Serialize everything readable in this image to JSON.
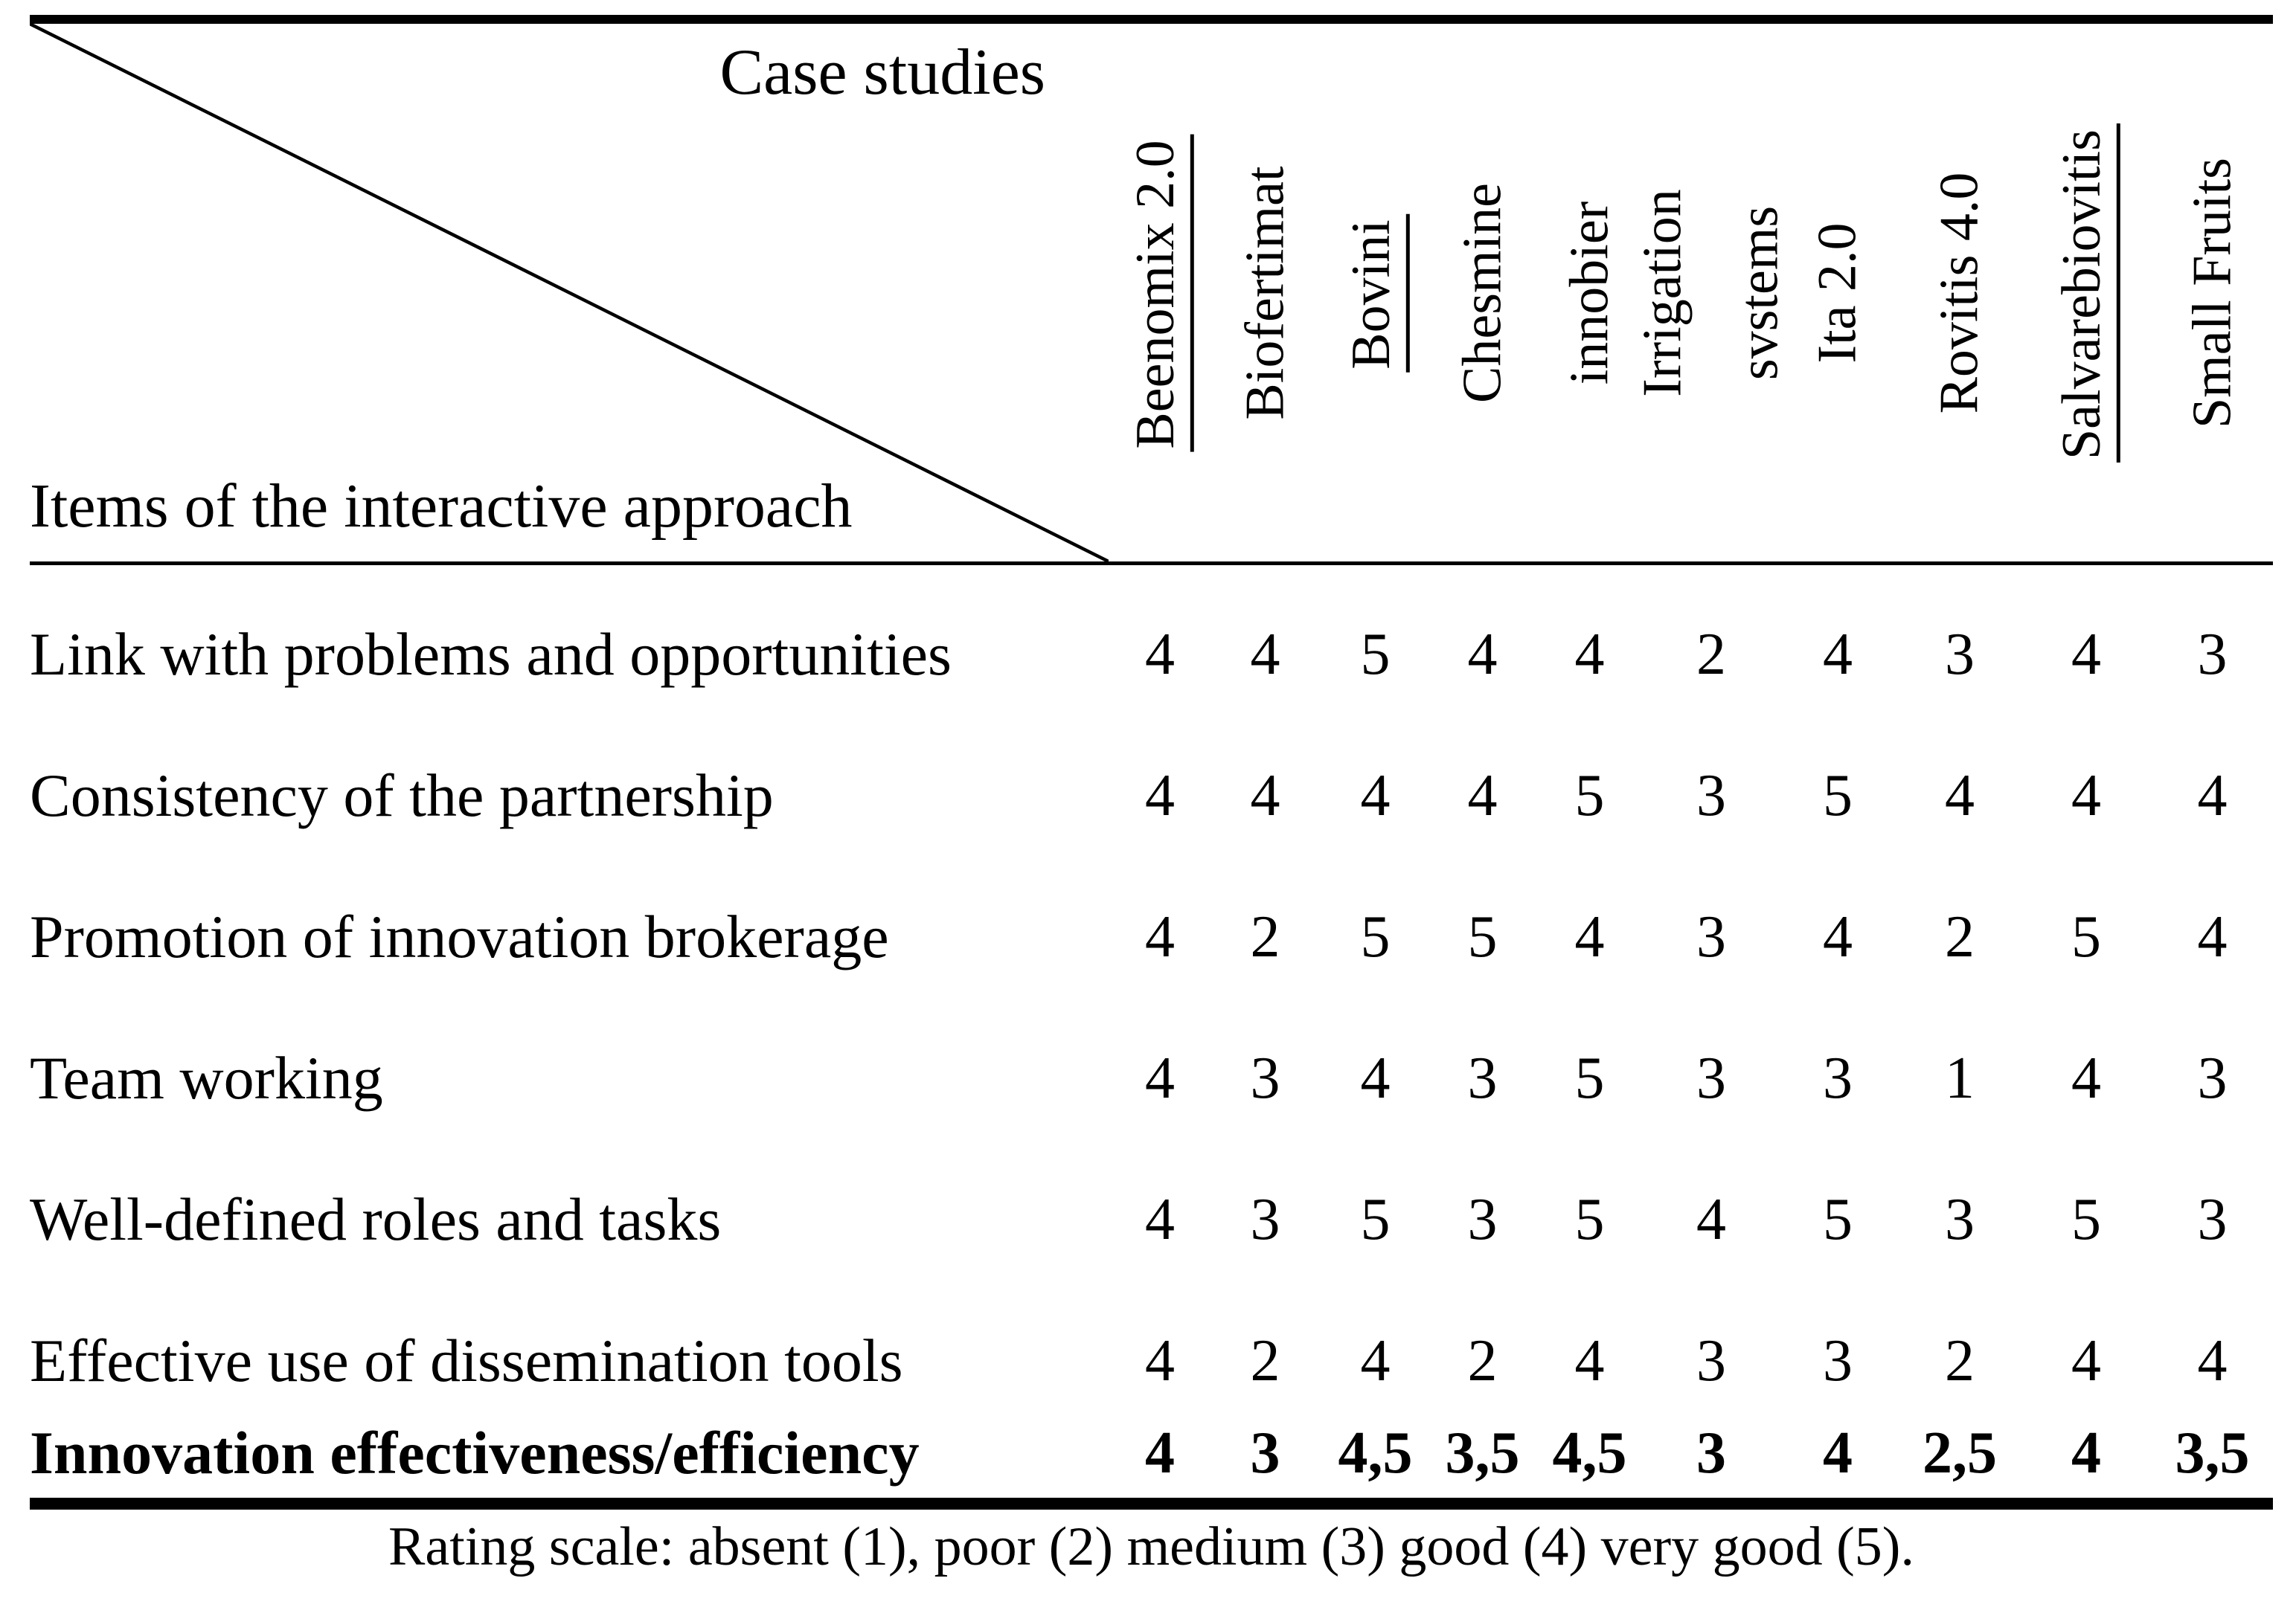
{
  "table": {
    "corner": {
      "top_label": "Case studies",
      "bottom_label": "Items of the interactive approach"
    },
    "columns": [
      {
        "lines": [
          "Beenomix 2.0"
        ],
        "underline": true
      },
      {
        "lines": [
          "Biofertimat"
        ],
        "underline": false
      },
      {
        "lines": [
          "Bovini"
        ],
        "underline": true
      },
      {
        "lines": [
          "Chesmine"
        ],
        "underline": false
      },
      {
        "lines": [
          "innobier"
        ],
        "underline": false
      },
      {
        "lines": [
          "Irrigation",
          "svstems"
        ],
        "underline": false
      },
      {
        "lines": [
          "Ita 2.0"
        ],
        "underline": false
      },
      {
        "lines": [
          "Rovitis 4.0"
        ],
        "underline": false
      },
      {
        "lines": [
          "Salvarebiovitis"
        ],
        "underline": true
      },
      {
        "lines": [
          "Small Fruits"
        ],
        "underline": false
      }
    ],
    "rows": [
      {
        "label": "Link with problems and opportunities",
        "bold": false,
        "values": [
          "4",
          "4",
          "5",
          "4",
          "4",
          "2",
          "4",
          "3",
          "4",
          "3"
        ]
      },
      {
        "label": "Consistency of the partnership",
        "bold": false,
        "values": [
          "4",
          "4",
          "4",
          "4",
          "5",
          "3",
          "5",
          "4",
          "4",
          "4"
        ]
      },
      {
        "label": "Promotion of innovation brokerage",
        "bold": false,
        "values": [
          "4",
          "2",
          "5",
          "5",
          "4",
          "3",
          "4",
          "2",
          "5",
          "4"
        ]
      },
      {
        "label": "Team working",
        "bold": false,
        "values": [
          "4",
          "3",
          "4",
          "3",
          "5",
          "3",
          "3",
          "1",
          "4",
          "3"
        ]
      },
      {
        "label": "Well-defined roles and tasks",
        "bold": false,
        "values": [
          "4",
          "3",
          "5",
          "3",
          "5",
          "4",
          "5",
          "3",
          "5",
          "3"
        ]
      },
      {
        "label": "Effective use of dissemination tools",
        "bold": false,
        "values": [
          "4",
          "2",
          "4",
          "2",
          "4",
          "3",
          "3",
          "2",
          "4",
          "4"
        ]
      },
      {
        "label": "Innovation effectiveness/efficiency",
        "bold": true,
        "values": [
          "4",
          "3",
          "4,5",
          "3,5",
          "4,5",
          "3",
          "4",
          "2,5",
          "4",
          "3,5"
        ]
      }
    ],
    "footnote": "Rating scale: absent (1), poor (2) medium (3) good (4) very good (5).",
    "colors": {
      "ink": "#000000",
      "paper": "#ffffff"
    }
  }
}
